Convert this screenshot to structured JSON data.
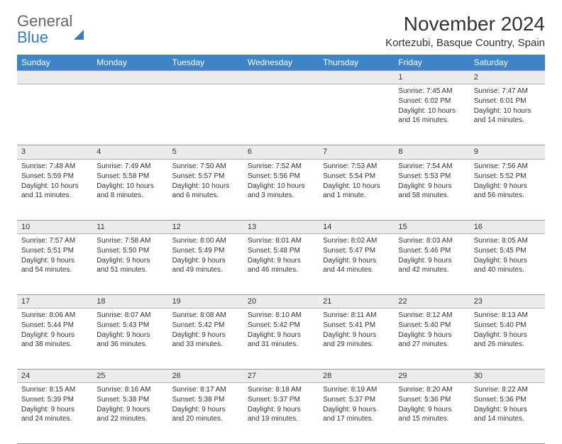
{
  "brand": {
    "line1": "General",
    "line2": "Blue"
  },
  "title": "November 2024",
  "location": "Kortezubi, Basque Country, Spain",
  "colors": {
    "header_bg": "#3d85c6",
    "header_text": "#ffffff",
    "daynum_bg": "#ececec",
    "border": "#999999",
    "text": "#333333",
    "brand_blue": "#2f7fc2"
  },
  "day_headers": [
    "Sunday",
    "Monday",
    "Tuesday",
    "Wednesday",
    "Thursday",
    "Friday",
    "Saturday"
  ],
  "weeks": [
    [
      null,
      null,
      null,
      null,
      null,
      {
        "n": "1",
        "sr": "Sunrise: 7:45 AM",
        "ss": "Sunset: 6:02 PM",
        "dl": "Daylight: 10 hours and 16 minutes."
      },
      {
        "n": "2",
        "sr": "Sunrise: 7:47 AM",
        "ss": "Sunset: 6:01 PM",
        "dl": "Daylight: 10 hours and 14 minutes."
      }
    ],
    [
      {
        "n": "3",
        "sr": "Sunrise: 7:48 AM",
        "ss": "Sunset: 5:59 PM",
        "dl": "Daylight: 10 hours and 11 minutes."
      },
      {
        "n": "4",
        "sr": "Sunrise: 7:49 AM",
        "ss": "Sunset: 5:58 PM",
        "dl": "Daylight: 10 hours and 8 minutes."
      },
      {
        "n": "5",
        "sr": "Sunrise: 7:50 AM",
        "ss": "Sunset: 5:57 PM",
        "dl": "Daylight: 10 hours and 6 minutes."
      },
      {
        "n": "6",
        "sr": "Sunrise: 7:52 AM",
        "ss": "Sunset: 5:56 PM",
        "dl": "Daylight: 10 hours and 3 minutes."
      },
      {
        "n": "7",
        "sr": "Sunrise: 7:53 AM",
        "ss": "Sunset: 5:54 PM",
        "dl": "Daylight: 10 hours and 1 minute."
      },
      {
        "n": "8",
        "sr": "Sunrise: 7:54 AM",
        "ss": "Sunset: 5:53 PM",
        "dl": "Daylight: 9 hours and 58 minutes."
      },
      {
        "n": "9",
        "sr": "Sunrise: 7:56 AM",
        "ss": "Sunset: 5:52 PM",
        "dl": "Daylight: 9 hours and 56 minutes."
      }
    ],
    [
      {
        "n": "10",
        "sr": "Sunrise: 7:57 AM",
        "ss": "Sunset: 5:51 PM",
        "dl": "Daylight: 9 hours and 54 minutes."
      },
      {
        "n": "11",
        "sr": "Sunrise: 7:58 AM",
        "ss": "Sunset: 5:50 PM",
        "dl": "Daylight: 9 hours and 51 minutes."
      },
      {
        "n": "12",
        "sr": "Sunrise: 8:00 AM",
        "ss": "Sunset: 5:49 PM",
        "dl": "Daylight: 9 hours and 49 minutes."
      },
      {
        "n": "13",
        "sr": "Sunrise: 8:01 AM",
        "ss": "Sunset: 5:48 PM",
        "dl": "Daylight: 9 hours and 46 minutes."
      },
      {
        "n": "14",
        "sr": "Sunrise: 8:02 AM",
        "ss": "Sunset: 5:47 PM",
        "dl": "Daylight: 9 hours and 44 minutes."
      },
      {
        "n": "15",
        "sr": "Sunrise: 8:03 AM",
        "ss": "Sunset: 5:46 PM",
        "dl": "Daylight: 9 hours and 42 minutes."
      },
      {
        "n": "16",
        "sr": "Sunrise: 8:05 AM",
        "ss": "Sunset: 5:45 PM",
        "dl": "Daylight: 9 hours and 40 minutes."
      }
    ],
    [
      {
        "n": "17",
        "sr": "Sunrise: 8:06 AM",
        "ss": "Sunset: 5:44 PM",
        "dl": "Daylight: 9 hours and 38 minutes."
      },
      {
        "n": "18",
        "sr": "Sunrise: 8:07 AM",
        "ss": "Sunset: 5:43 PM",
        "dl": "Daylight: 9 hours and 36 minutes."
      },
      {
        "n": "19",
        "sr": "Sunrise: 8:08 AM",
        "ss": "Sunset: 5:42 PM",
        "dl": "Daylight: 9 hours and 33 minutes."
      },
      {
        "n": "20",
        "sr": "Sunrise: 8:10 AM",
        "ss": "Sunset: 5:42 PM",
        "dl": "Daylight: 9 hours and 31 minutes."
      },
      {
        "n": "21",
        "sr": "Sunrise: 8:11 AM",
        "ss": "Sunset: 5:41 PM",
        "dl": "Daylight: 9 hours and 29 minutes."
      },
      {
        "n": "22",
        "sr": "Sunrise: 8:12 AM",
        "ss": "Sunset: 5:40 PM",
        "dl": "Daylight: 9 hours and 27 minutes."
      },
      {
        "n": "23",
        "sr": "Sunrise: 8:13 AM",
        "ss": "Sunset: 5:40 PM",
        "dl": "Daylight: 9 hours and 26 minutes."
      }
    ],
    [
      {
        "n": "24",
        "sr": "Sunrise: 8:15 AM",
        "ss": "Sunset: 5:39 PM",
        "dl": "Daylight: 9 hours and 24 minutes."
      },
      {
        "n": "25",
        "sr": "Sunrise: 8:16 AM",
        "ss": "Sunset: 5:38 PM",
        "dl": "Daylight: 9 hours and 22 minutes."
      },
      {
        "n": "26",
        "sr": "Sunrise: 8:17 AM",
        "ss": "Sunset: 5:38 PM",
        "dl": "Daylight: 9 hours and 20 minutes."
      },
      {
        "n": "27",
        "sr": "Sunrise: 8:18 AM",
        "ss": "Sunset: 5:37 PM",
        "dl": "Daylight: 9 hours and 19 minutes."
      },
      {
        "n": "28",
        "sr": "Sunrise: 8:19 AM",
        "ss": "Sunset: 5:37 PM",
        "dl": "Daylight: 9 hours and 17 minutes."
      },
      {
        "n": "29",
        "sr": "Sunrise: 8:20 AM",
        "ss": "Sunset: 5:36 PM",
        "dl": "Daylight: 9 hours and 15 minutes."
      },
      {
        "n": "30",
        "sr": "Sunrise: 8:22 AM",
        "ss": "Sunset: 5:36 PM",
        "dl": "Daylight: 9 hours and 14 minutes."
      }
    ]
  ]
}
